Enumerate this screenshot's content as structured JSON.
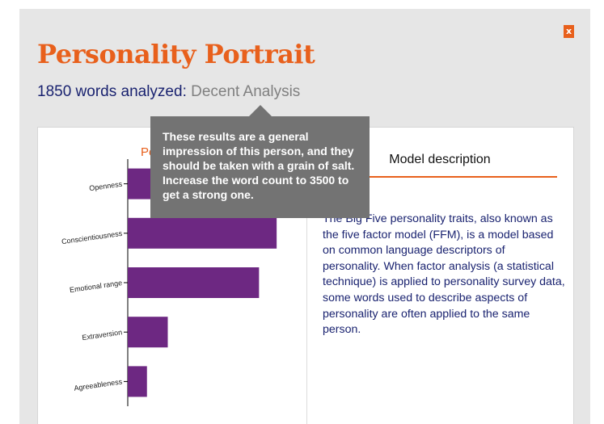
{
  "header": {
    "title": "Personality Portrait",
    "word_count": "1850 words analyzed:",
    "analysis_quality": "Decent Analysis",
    "close_label": "x"
  },
  "tooltip": {
    "text": "These results are a general impression of this person, and they should be taken with a grain of salt. Increase the word count to 3500 to get a strong one."
  },
  "chart_heading": "Pe",
  "model": {
    "tab_label": "Model description",
    "description": "The Big Five personality traits, also known as the five factor model (FFM), is a model based on common language descriptors of personality. When factor analysis (a statistical technique) is applied to personality survey data, some words used to describe aspects of personality are often applied to the same person."
  },
  "colors": {
    "accent": "#e8601c",
    "bar": "#6d2882",
    "navy_text": "#1a2370"
  },
  "chart_data": {
    "type": "bar",
    "orientation": "horizontal",
    "categories": [
      "Openness",
      "Conscientiousness",
      "Emotional range",
      "Extraversion",
      "Agreeableness"
    ],
    "values": [
      0.26,
      0.93,
      0.82,
      0.25,
      0.12
    ],
    "xlim": [
      0,
      1
    ],
    "grid": false
  }
}
